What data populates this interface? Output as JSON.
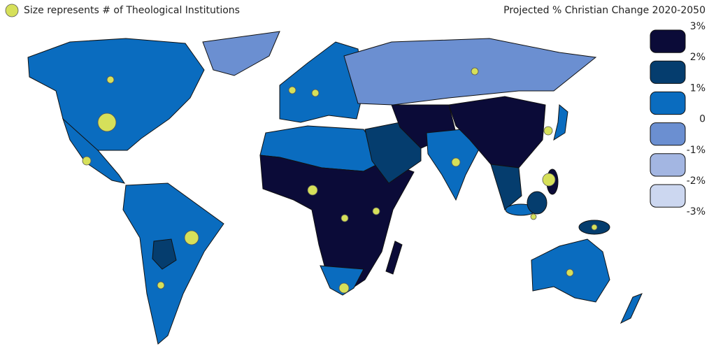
{
  "legend": {
    "note": "Size represents # of Theological Institutions",
    "title": "Projected % Christian Change 2020-2050",
    "labels": [
      "3%",
      "2%",
      "1%",
      "0",
      "-1%",
      "-2%",
      "-3%"
    ],
    "colors": [
      "#0b0b38",
      "#053d6e",
      "#0a6cbf",
      "#6b8fd1",
      "#a3b6e2",
      "#ccd7f0"
    ]
  }
}
